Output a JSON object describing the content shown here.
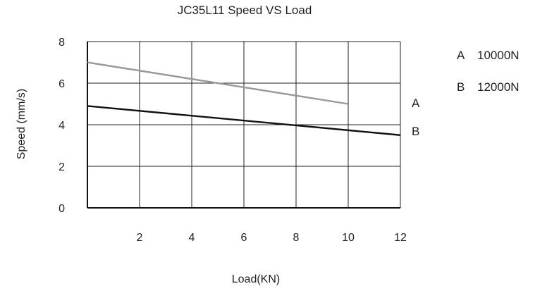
{
  "chart_data": {
    "type": "line",
    "title": "JC35L11 Speed VS Load",
    "xlabel": "Load(KN)",
    "ylabel": "Speed (mm/s)",
    "xlim": [
      0,
      12
    ],
    "ylim": [
      0,
      8
    ],
    "x_ticks": [
      {
        "value": 2,
        "label": "2"
      },
      {
        "value": 4,
        "label": "4"
      },
      {
        "value": 6,
        "label": "6"
      },
      {
        "value": 8,
        "label": "8"
      },
      {
        "value": 10,
        "label": "10"
      },
      {
        "value": 12,
        "label": "12"
      }
    ],
    "y_ticks": [
      {
        "value": 0,
        "label": "0"
      },
      {
        "value": 2,
        "label": "2"
      },
      {
        "value": 4,
        "label": "4"
      },
      {
        "value": 6,
        "label": "6"
      },
      {
        "value": 8,
        "label": "8"
      }
    ],
    "grid": true,
    "series": [
      {
        "name": "A",
        "legend_label": "A",
        "legend_value": "10000N",
        "color": "#999999",
        "x": [
          0,
          10
        ],
        "y": [
          7.0,
          5.0
        ]
      },
      {
        "name": "B",
        "legend_label": "B",
        "legend_value": "12000N",
        "color": "#111111",
        "x": [
          0,
          12
        ],
        "y": [
          4.9,
          3.5
        ]
      }
    ],
    "legend_position": "top-right"
  }
}
